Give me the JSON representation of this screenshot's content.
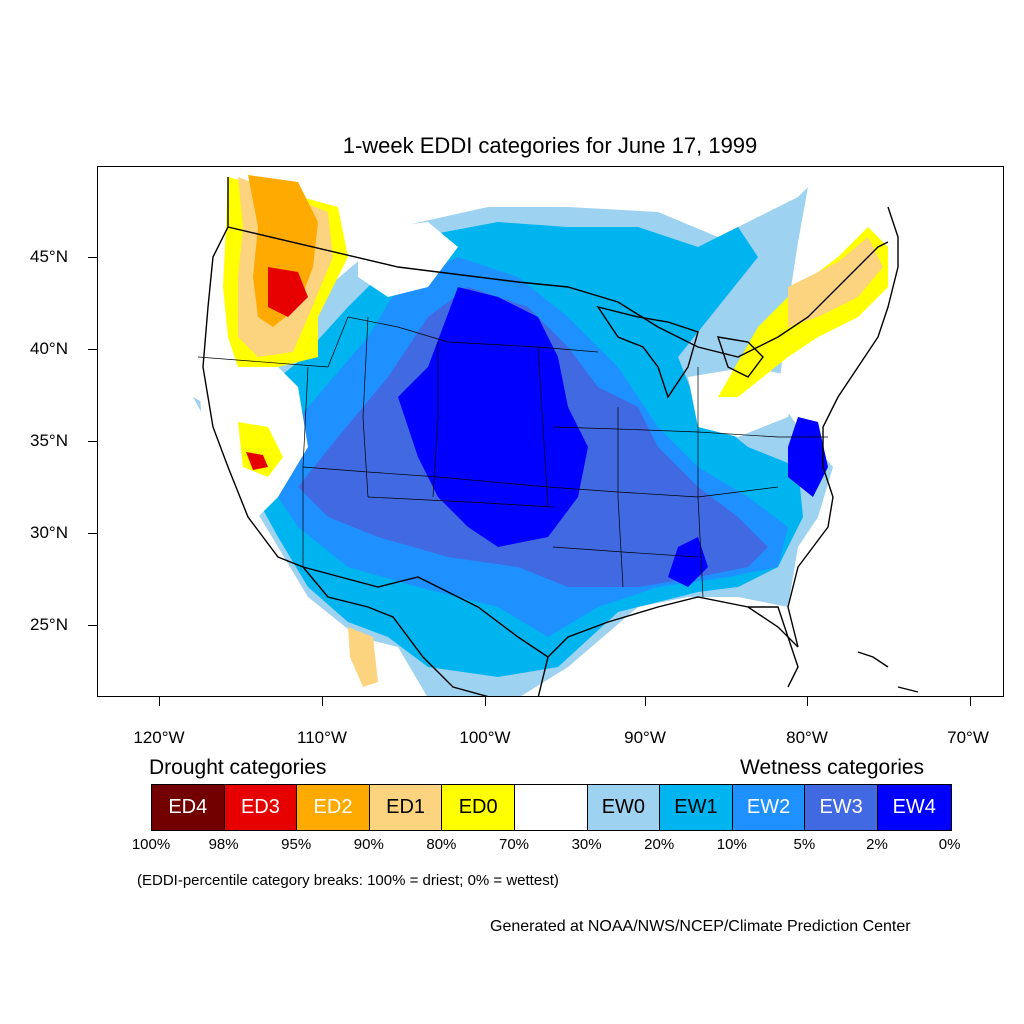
{
  "title": "1-week EDDI categories for June 17, 1999",
  "axes": {
    "y_ticks": [
      "45°N",
      "40°N",
      "35°N",
      "30°N",
      "25°N"
    ],
    "x_ticks": [
      "120°W",
      "110°W",
      "100°W",
      "90°W",
      "80°W",
      "70°W"
    ]
  },
  "legend": {
    "drought_heading": "Drought categories",
    "wetness_heading": "Wetness categories",
    "categories": [
      {
        "label": "ED4",
        "color": "#730000",
        "text_color": "#ffffff"
      },
      {
        "label": "ED3",
        "color": "#e60000",
        "text_color": "#ffffff"
      },
      {
        "label": "ED2",
        "color": "#ffaa00",
        "text_color": "#ffffff"
      },
      {
        "label": "ED1",
        "color": "#fcd37f",
        "text_color": "#000000"
      },
      {
        "label": "ED0",
        "color": "#ffff00",
        "text_color": "#000000"
      },
      {
        "label": "",
        "color": "#ffffff",
        "text_color": "#000000"
      },
      {
        "label": "EW0",
        "color": "#9dd2f0",
        "text_color": "#000000"
      },
      {
        "label": "EW1",
        "color": "#00b4f0",
        "text_color": "#000000"
      },
      {
        "label": "EW2",
        "color": "#1e90ff",
        "text_color": "#ffffff"
      },
      {
        "label": "EW3",
        "color": "#4169e1",
        "text_color": "#ffffff"
      },
      {
        "label": "EW4",
        "color": "#0000ff",
        "text_color": "#ffffff"
      }
    ],
    "breaks": [
      "100%",
      "98%",
      "95%",
      "90%",
      "80%",
      "70%",
      "30%",
      "20%",
      "10%",
      "5%",
      "2%",
      "0%"
    ]
  },
  "note": "(EDDI-percentile category breaks: 100% = driest; 0% = wettest)",
  "credit": "Generated at NOAA/NWS/NCEP/Climate Prediction Center"
}
